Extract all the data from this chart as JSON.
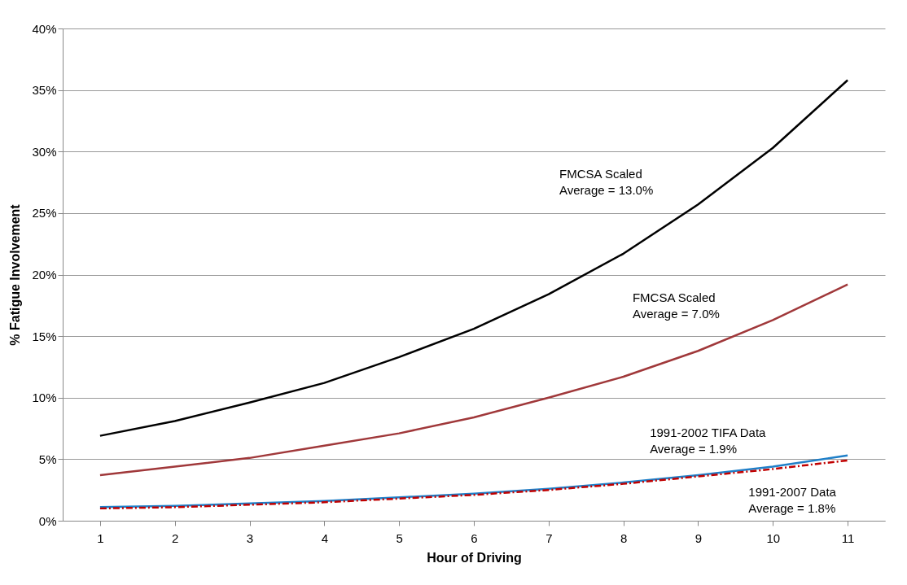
{
  "chart_data": {
    "type": "line",
    "xlabel": "Hour of Driving",
    "ylabel": "% Fatigue Involvement",
    "x": [
      1,
      2,
      3,
      4,
      5,
      6,
      7,
      8,
      9,
      10,
      11
    ],
    "xlim": [
      0.5,
      11.5
    ],
    "xticks": [
      1,
      2,
      3,
      4,
      5,
      6,
      7,
      8,
      9,
      10,
      11
    ],
    "ylim": [
      0,
      40
    ],
    "yticks": [
      {
        "value": 0,
        "label": "0%"
      },
      {
        "value": 5,
        "label": "5%"
      },
      {
        "value": 10,
        "label": "10%"
      },
      {
        "value": 15,
        "label": "15%"
      },
      {
        "value": 20,
        "label": "20%"
      },
      {
        "value": 25,
        "label": "25%"
      },
      {
        "value": 30,
        "label": "30%"
      },
      {
        "value": 35,
        "label": "35%"
      },
      {
        "value": 40,
        "label": "40%"
      }
    ],
    "grid": "y",
    "marker": "none",
    "series": [
      {
        "color": "#000000",
        "line_style": "solid",
        "values": [
          6.9,
          8.1,
          9.6,
          11.2,
          13.3,
          15.6,
          18.4,
          21.7,
          25.7,
          30.3,
          35.8
        ]
      },
      {
        "color": "#a0383a",
        "line_style": "solid",
        "values": [
          3.7,
          4.4,
          5.1,
          6.1,
          7.1,
          8.4,
          10.0,
          11.7,
          13.8,
          16.3,
          19.2
        ]
      },
      {
        "color": "#1f7fc8",
        "line_style": "solid",
        "values": [
          1.1,
          1.2,
          1.4,
          1.6,
          1.9,
          2.2,
          2.6,
          3.1,
          3.7,
          4.4,
          5.3
        ]
      },
      {
        "color": "#c00000",
        "line_style": "dashed",
        "values": [
          1.0,
          1.1,
          1.3,
          1.5,
          1.8,
          2.1,
          2.5,
          3.0,
          3.6,
          4.2,
          4.9
        ]
      }
    ],
    "annotations": [
      "FMCSA Scaled\nAverage = 13.0%",
      "FMCSA Scaled\nAverage = 7.0%",
      "1991-2002 TIFA Data\nAverage = 1.9%",
      "1991-2007 Data\nAverage = 1.8%"
    ]
  }
}
